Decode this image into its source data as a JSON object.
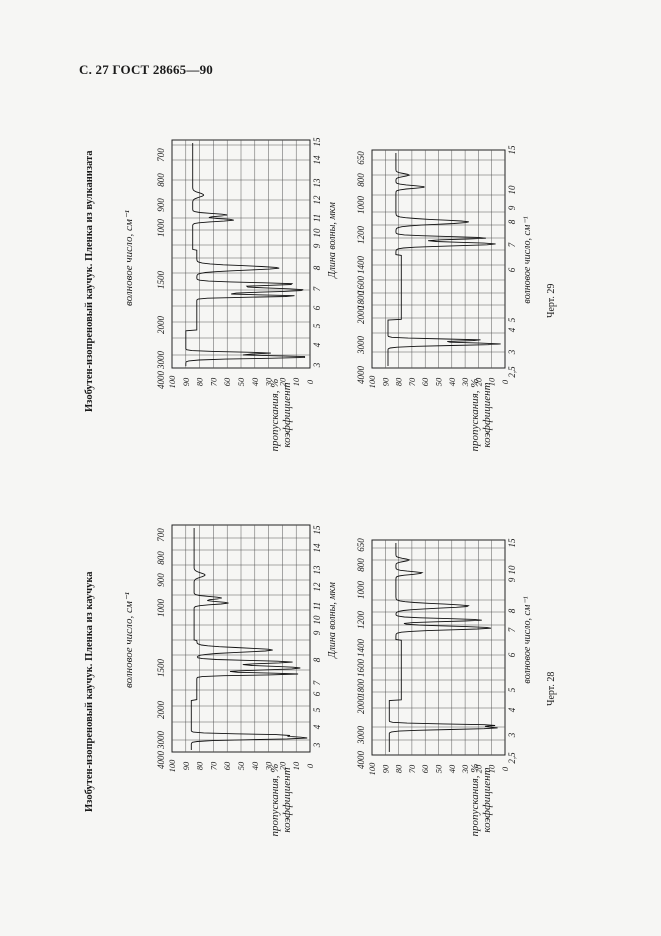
{
  "header": "С. 27 ГОСТ 28665—90",
  "figures": [
    {
      "id": "chert-28",
      "title": "Изобутен-изопреновый каучук. Пленка из каучука",
      "caption": "Черт. 28",
      "wavenumber_label": "волновое число, см⁻¹",
      "wavelength_label": "Длина волны, мкм",
      "transmission_label_1": "коэффициент",
      "transmission_label_2": "пропускания, %"
    },
    {
      "id": "chert-29",
      "title": "Изобутен-изопреновый каучук. Пленка из вулканизата",
      "caption": "Черт. 29",
      "wavenumber_label": "волновое число, см⁻¹",
      "wavelength_label": "Длина волны, мкм",
      "transmission_label_1": "коэффициент",
      "transmission_label_2": "пропускания, %"
    }
  ],
  "axes": {
    "transmission_ticks": [
      "100",
      "90",
      "80",
      "70",
      "60",
      "50",
      "40",
      "30",
      "20",
      "10",
      "0"
    ],
    "wavenumber_ticks_upper": [
      "4000",
      "3000",
      "2000",
      "1500",
      "1000",
      "900",
      "800",
      "700"
    ],
    "wavelength_ticks_upper": [
      "3",
      "4",
      "5",
      "6",
      "7",
      "8",
      "9",
      "10",
      "11",
      "12",
      "13",
      "14",
      "15"
    ],
    "wavenumber_ticks_lower": [
      "4000",
      "3000",
      "2000",
      "1800",
      "1600",
      "1400",
      "1200",
      "1000",
      "800",
      "650"
    ],
    "wavelength_ticks_lower": [
      "2,5",
      "3",
      "4",
      "5",
      "6",
      "7",
      "8",
      "9",
      "10",
      "15"
    ]
  }
}
